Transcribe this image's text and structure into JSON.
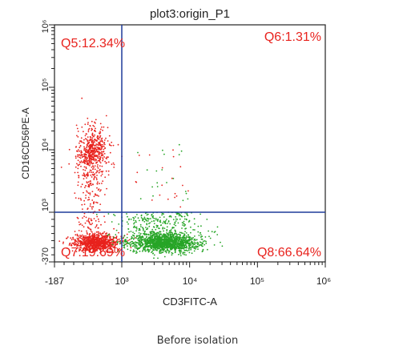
{
  "chart_data": {
    "type": "scatter",
    "title": "plot3:origin_P1",
    "xlabel": "CD3FITC-A",
    "ylabel": "CD16CD56PE-A",
    "x_scale": "log",
    "y_scale": "log",
    "xlim": [
      -187,
      1000000
    ],
    "ylim": [
      -370,
      1000000
    ],
    "x_tick_labels": [
      "-187",
      "10³",
      "10⁴",
      "10⁵",
      "10⁶"
    ],
    "x_tick_values": [
      -187,
      1000,
      10000,
      100000,
      1000000
    ],
    "y_tick_labels": [
      "-370",
      "10³",
      "10⁴",
      "10⁵",
      "10⁶"
    ],
    "y_tick_values": [
      -370,
      1000,
      10000,
      100000,
      1000000
    ],
    "gate_x": 1000,
    "gate_y": 1000,
    "quadrants": [
      {
        "id": "Q5",
        "label": "Q5:12.34%",
        "percent": 12.34
      },
      {
        "id": "Q6",
        "label": "Q6:1.31%",
        "percent": 1.31
      },
      {
        "id": "Q7",
        "label": "Q7:19.69%",
        "percent": 19.69
      },
      {
        "id": "Q8",
        "label": "Q8:66.64%",
        "percent": 66.64
      }
    ],
    "series": [
      {
        "name": "",
        "color": "#e8221d"
      },
      {
        "name": "",
        "color": "#27a527"
      }
    ],
    "grid": false
  },
  "caption": "Before isolation",
  "colors": {
    "gate_line": "#1f3c9a",
    "quadrant_label": "#e8221d",
    "axis": "#222222"
  }
}
